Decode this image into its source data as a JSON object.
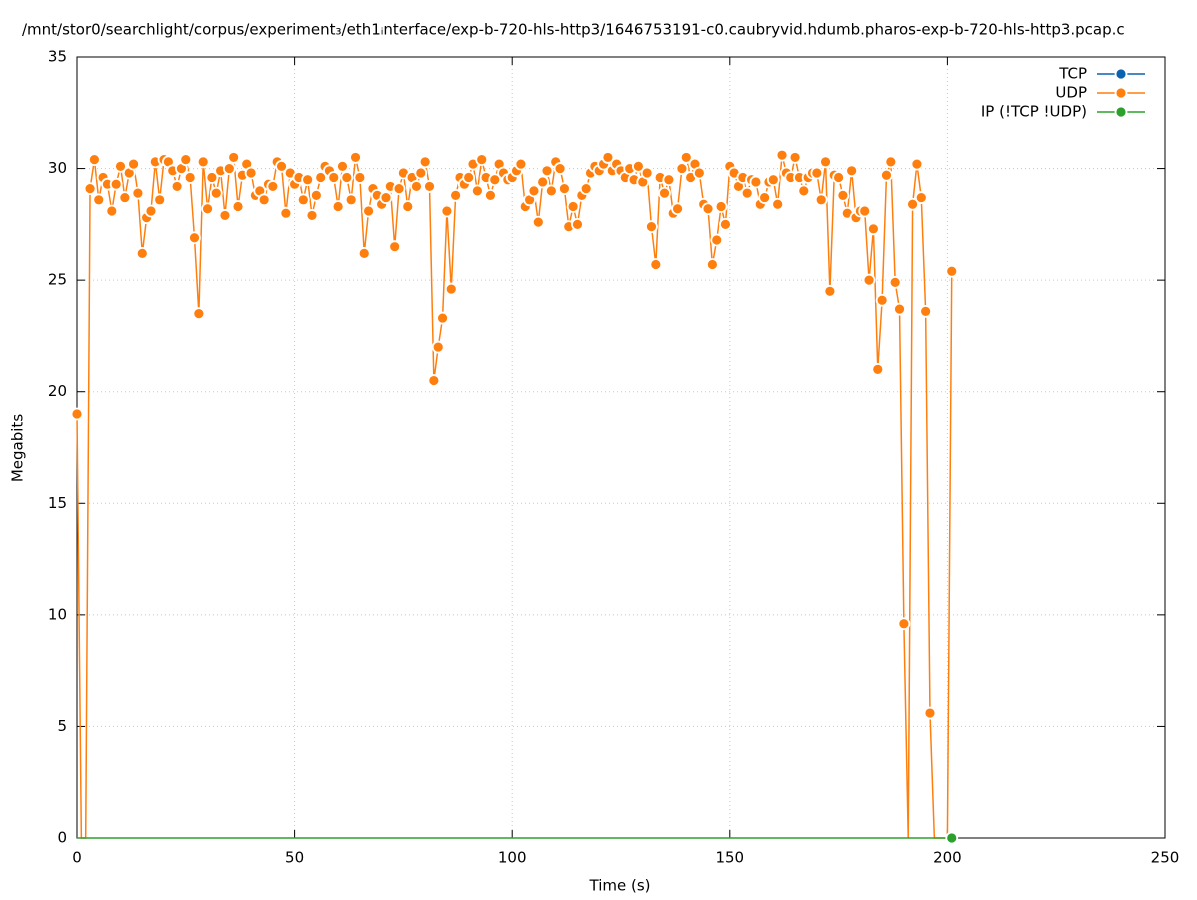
{
  "chart_data": {
    "type": "line",
    "title": "/mnt/stor0/searchlight/corpus/experiment₃/eth1ᵢnterface/exp-b-720-hls-http3/1646753191-c0.caubryvid.hdumb.pharos-exp-b-720-hls-http3.pcap.c",
    "xlabel": "Time (s)",
    "ylabel": "Megabits",
    "xlim": [
      0,
      250
    ],
    "xticks": [
      0,
      50,
      100,
      150,
      200,
      250
    ],
    "ylim": [
      0,
      35
    ],
    "yticks": [
      0,
      5,
      10,
      15,
      20,
      25,
      30,
      35
    ],
    "grid": true,
    "legend": "top-right",
    "x": [
      0,
      1,
      2,
      3,
      4,
      5,
      6,
      7,
      8,
      9,
      10,
      11,
      12,
      13,
      14,
      15,
      16,
      17,
      18,
      19,
      20,
      21,
      22,
      23,
      24,
      25,
      26,
      27,
      28,
      29,
      30,
      31,
      32,
      33,
      34,
      35,
      36,
      37,
      38,
      39,
      40,
      41,
      42,
      43,
      44,
      45,
      46,
      47,
      48,
      49,
      50,
      51,
      52,
      53,
      54,
      55,
      56,
      57,
      58,
      59,
      60,
      61,
      62,
      63,
      64,
      65,
      66,
      67,
      68,
      69,
      70,
      71,
      72,
      73,
      74,
      75,
      76,
      77,
      78,
      79,
      80,
      81,
      82,
      83,
      84,
      85,
      86,
      87,
      88,
      89,
      90,
      91,
      92,
      93,
      94,
      95,
      96,
      97,
      98,
      99,
      100,
      101,
      102,
      103,
      104,
      105,
      106,
      107,
      108,
      109,
      110,
      111,
      112,
      113,
      114,
      115,
      116,
      117,
      118,
      119,
      120,
      121,
      122,
      123,
      124,
      125,
      126,
      127,
      128,
      129,
      130,
      131,
      132,
      133,
      134,
      135,
      136,
      137,
      138,
      139,
      140,
      141,
      142,
      143,
      144,
      145,
      146,
      147,
      148,
      149,
      150,
      151,
      152,
      153,
      154,
      155,
      156,
      157,
      158,
      159,
      160,
      161,
      162,
      163,
      164,
      165,
      166,
      167,
      168,
      169,
      170,
      171,
      172,
      173,
      174,
      175,
      176,
      177,
      178,
      179,
      180,
      181,
      182,
      183,
      184,
      185,
      186,
      187,
      188,
      189,
      190,
      191,
      192,
      193,
      194,
      195,
      196,
      197,
      198,
      199,
      200,
      201
    ],
    "series": [
      {
        "name": "TCP",
        "color": "#0b62b0",
        "values": [
          null,
          null,
          null,
          null,
          null,
          null,
          null,
          null,
          null,
          null,
          null,
          null,
          null,
          null,
          null,
          null,
          null,
          null,
          null,
          null,
          null,
          null,
          null,
          null,
          null,
          null,
          null,
          null,
          null,
          null,
          null,
          null,
          null,
          null,
          null,
          null,
          null,
          null,
          null,
          null,
          null,
          null,
          null,
          null,
          null,
          null,
          null,
          null,
          null,
          null,
          null,
          null,
          null,
          null,
          null,
          null,
          null,
          null,
          null,
          null,
          null,
          null,
          null,
          null,
          null,
          null,
          null,
          null,
          null,
          null,
          null,
          null,
          null,
          null,
          null,
          null,
          null,
          null,
          null,
          null,
          null,
          null,
          null,
          null,
          null,
          null,
          null,
          null,
          null,
          null,
          null,
          null,
          null,
          null,
          null,
          null,
          null,
          null,
          null,
          null,
          null,
          null,
          null,
          null,
          null,
          null,
          null,
          null,
          null,
          null,
          null,
          null,
          null,
          null,
          null,
          null,
          null,
          null,
          null,
          null,
          null,
          null,
          null,
          null,
          null,
          null,
          null,
          null,
          null,
          null,
          null,
          null,
          null,
          null,
          null,
          null,
          null,
          null,
          null,
          null,
          null,
          null,
          null,
          null,
          null,
          null,
          null,
          null,
          null,
          null,
          null,
          null,
          null,
          null,
          null,
          null,
          null,
          null,
          null,
          null,
          null,
          null,
          null,
          null,
          null,
          null,
          null,
          null,
          null,
          null,
          null,
          null,
          null,
          null,
          null,
          null,
          null,
          null,
          null,
          null,
          null,
          null,
          null,
          null,
          null,
          null,
          null,
          null,
          null,
          null,
          null,
          null,
          null,
          null,
          null,
          null,
          null,
          null,
          null,
          null,
          null,
          null
        ]
      },
      {
        "name": "UDP",
        "color": "#ff7f0e",
        "values": [
          19.0,
          0,
          0,
          29.1,
          30.4,
          28.6,
          29.6,
          29.3,
          28.1,
          29.3,
          30.1,
          28.7,
          29.8,
          30.2,
          28.9,
          26.2,
          27.8,
          28.1,
          30.3,
          28.6,
          30.4,
          30.3,
          29.9,
          29.2,
          30.0,
          30.4,
          29.6,
          26.9,
          23.5,
          30.3,
          28.2,
          29.6,
          28.9,
          29.9,
          27.9,
          30.0,
          30.5,
          28.3,
          29.7,
          30.2,
          29.8,
          28.8,
          29.0,
          28.6,
          29.3,
          29.2,
          30.3,
          30.1,
          28.0,
          29.8,
          29.3,
          29.6,
          28.6,
          29.5,
          27.9,
          28.8,
          29.6,
          30.1,
          29.9,
          29.6,
          28.3,
          30.1,
          29.6,
          28.6,
          30.5,
          29.6,
          26.2,
          28.1,
          29.1,
          28.8,
          28.4,
          28.7,
          29.2,
          26.5,
          29.1,
          29.8,
          28.3,
          29.6,
          29.2,
          29.8,
          30.3,
          29.2,
          20.5,
          22.0,
          23.3,
          28.1,
          24.6,
          28.8,
          29.6,
          29.3,
          29.6,
          30.2,
          29.0,
          30.4,
          29.6,
          28.8,
          29.5,
          30.2,
          29.8,
          29.5,
          29.6,
          29.9,
          30.2,
          28.3,
          28.6,
          29.0,
          27.6,
          29.4,
          29.9,
          29.0,
          30.3,
          30.0,
          29.1,
          27.4,
          28.3,
          27.5,
          28.8,
          29.1,
          29.8,
          30.1,
          29.9,
          30.2,
          30.5,
          29.9,
          30.2,
          29.9,
          29.6,
          30.0,
          29.5,
          30.1,
          29.4,
          29.8,
          27.4,
          25.7,
          29.6,
          28.9,
          29.5,
          28.0,
          28.2,
          30.0,
          30.5,
          29.6,
          30.2,
          29.8,
          28.4,
          28.2,
          25.7,
          26.8,
          28.3,
          27.5,
          30.1,
          29.8,
          29.2,
          29.6,
          28.9,
          29.5,
          29.4,
          28.4,
          28.7,
          29.4,
          29.5,
          28.4,
          30.6,
          29.8,
          29.6,
          30.5,
          29.6,
          29.0,
          29.6,
          29.8,
          29.8,
          28.6,
          30.3,
          24.5,
          29.7,
          29.6,
          28.8,
          28.0,
          29.9,
          27.8,
          28.1,
          28.1,
          25.0,
          27.3,
          21.0,
          24.1,
          29.7,
          30.3,
          24.9,
          23.7,
          9.6,
          0,
          28.4,
          30.2,
          28.7,
          23.6,
          5.6,
          0,
          0,
          0,
          0,
          25.4
        ]
      },
      {
        "name": "IP (!TCP  !UDP)",
        "color": "#2ca02c",
        "values": [
          0,
          0,
          0,
          0,
          0,
          0,
          0,
          0,
          0,
          0,
          0,
          0,
          0,
          0,
          0,
          0,
          0,
          0,
          0,
          0,
          0,
          0,
          0,
          0,
          0,
          0,
          0,
          0,
          0,
          0,
          0,
          0,
          0,
          0,
          0,
          0,
          0,
          0,
          0,
          0,
          0,
          0,
          0,
          0,
          0,
          0,
          0,
          0,
          0,
          0,
          0,
          0,
          0,
          0,
          0,
          0,
          0,
          0,
          0,
          0,
          0,
          0,
          0,
          0,
          0,
          0,
          0,
          0,
          0,
          0,
          0,
          0,
          0,
          0,
          0,
          0,
          0,
          0,
          0,
          0,
          0,
          0,
          0,
          0,
          0,
          0,
          0,
          0,
          0,
          0,
          0,
          0,
          0,
          0,
          0,
          0,
          0,
          0,
          0,
          0,
          0,
          0,
          0,
          0,
          0,
          0,
          0,
          0,
          0,
          0,
          0,
          0,
          0,
          0,
          0,
          0,
          0,
          0,
          0,
          0,
          0,
          0,
          0,
          0,
          0,
          0,
          0,
          0,
          0,
          0,
          0,
          0,
          0,
          0,
          0,
          0,
          0,
          0,
          0,
          0,
          0,
          0,
          0,
          0,
          0,
          0,
          0,
          0,
          0,
          0,
          0,
          0,
          0,
          0,
          0,
          0,
          0,
          0,
          0,
          0,
          0,
          0,
          0,
          0,
          0,
          0,
          0,
          0,
          0,
          0,
          0,
          0,
          0,
          0,
          0,
          0,
          0,
          0,
          0,
          0,
          0,
          0,
          0,
          0,
          0,
          0,
          0,
          0,
          0,
          0,
          0,
          0,
          0,
          0,
          0,
          0,
          0,
          0,
          0,
          0,
          0,
          0
        ]
      }
    ]
  }
}
